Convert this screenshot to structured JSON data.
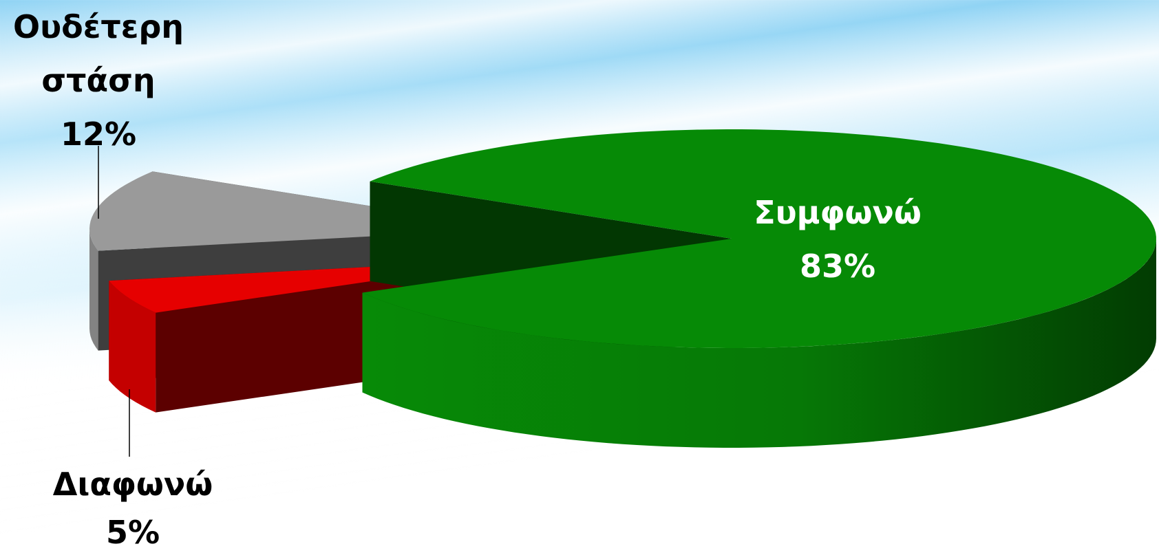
{
  "chart_data": {
    "type": "pie",
    "categories": [
      "Συμφωνώ",
      "Διαφωνώ",
      "Ουδέτερη στάση"
    ],
    "values": [
      83,
      5,
      12
    ],
    "value_labels": [
      "83%",
      "5%",
      "12%"
    ],
    "colors": [
      "#068a06",
      "#e60000",
      "#9a9a9a"
    ]
  }
}
